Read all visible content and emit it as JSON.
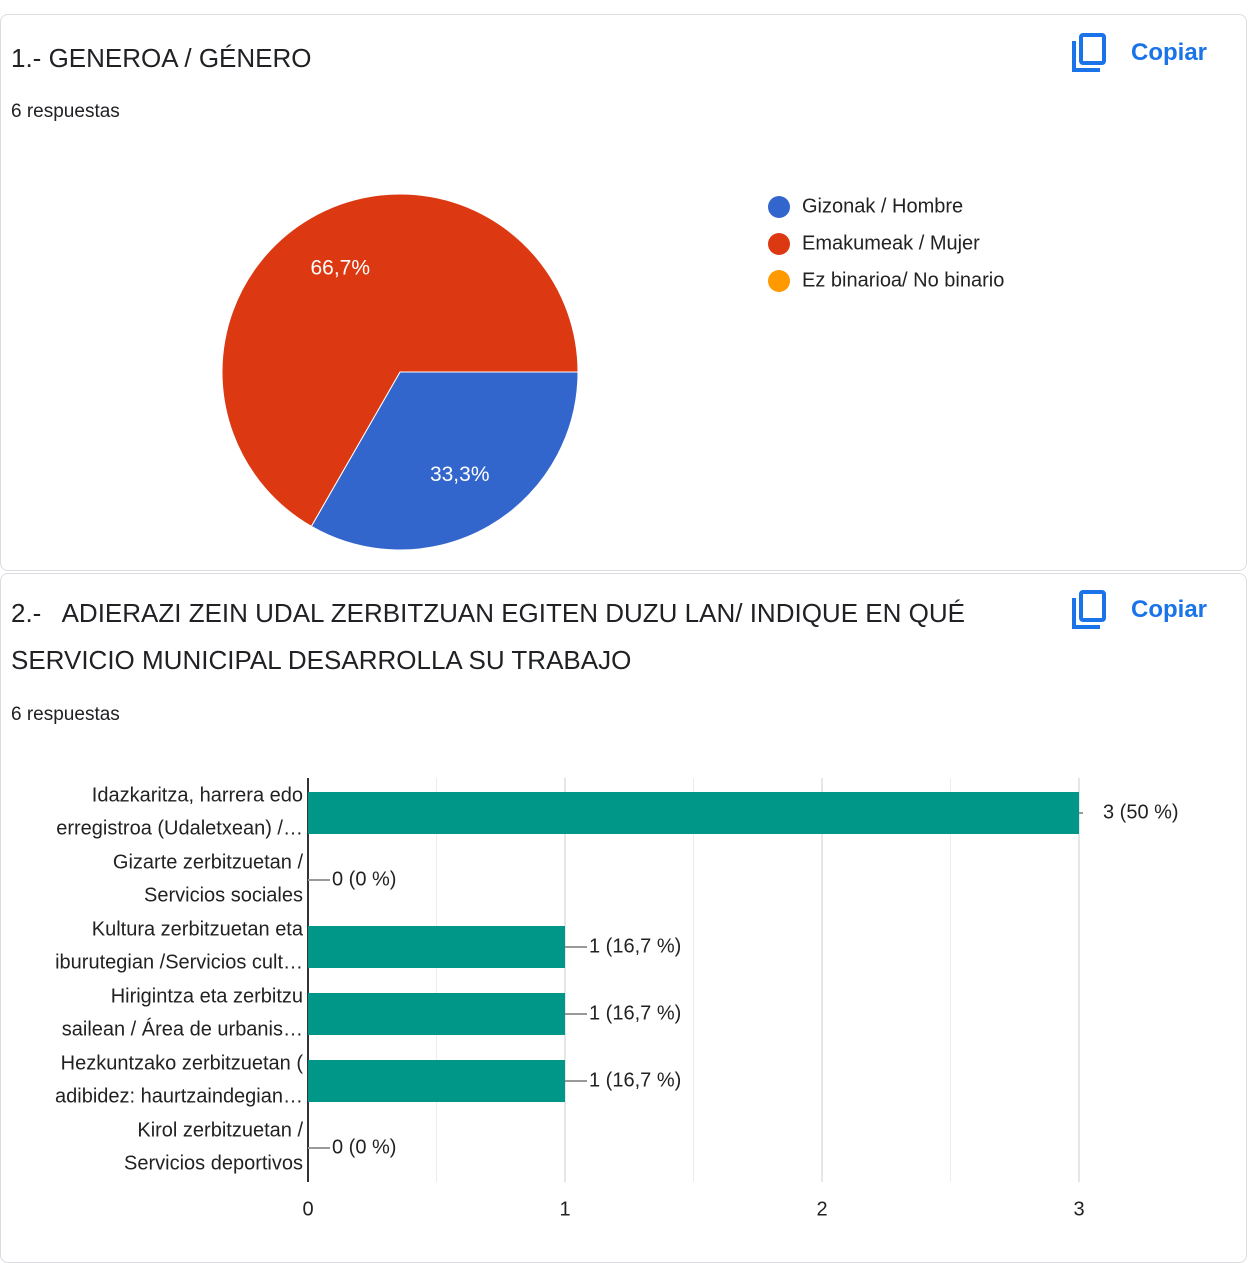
{
  "chart_data": [
    {
      "type": "pie",
      "title": "1.- GENEROA / GÉNERO",
      "subtitle": "6 respuestas",
      "button": "Copiar",
      "categories": [
        "Gizonak / Hombre",
        "Emakumeak / Mujer",
        "Ez binarioa/ No binario"
      ],
      "values": [
        33.3,
        66.7,
        0
      ],
      "value_labels": [
        "33,3%",
        "66,7%",
        null
      ],
      "colors": [
        "#3366cc",
        "#dc3912",
        "#ff9900"
      ],
      "legend": "right"
    },
    {
      "type": "hbar",
      "title": "2.-   ADIERAZI ZEIN UDAL ZERBITZUAN EGITEN DUZU LAN/ INDIQUE EN QUÉ SERVICIO MUNICIPAL DESARROLLA SU TRABAJO",
      "subtitle": "6 respuestas",
      "button": "Copiar",
      "categories": [
        "Idazkaritza, harrera edo\nerregistroa (Udaletxean) /…",
        "Gizarte zerbitzuetan /\nServicios sociales",
        "Kultura zerbitzuetan eta\niburutegian /Servicios cult…",
        "Hirigintza eta zerbitzu\nsailean / Área de urbanis…",
        "Hezkuntzako zerbitzuetan (\nadibidez: haurtzaindegian…",
        "Kirol zerbitzuetan /\nServicios deportivos"
      ],
      "values": [
        3,
        0,
        1,
        1,
        1,
        0
      ],
      "value_labels": [
        "3 (50 %)",
        "0 (0 %)",
        "1 (16,7 %)",
        "1 (16,7 %)",
        "1 (16,7 %)",
        "0 (0 %)"
      ],
      "color": "#009688",
      "xlim": [
        0,
        3
      ],
      "xticks": [
        0,
        1,
        2,
        3
      ],
      "minor_grid": [
        0.5,
        1.5,
        2.5
      ],
      "grid": true
    }
  ]
}
